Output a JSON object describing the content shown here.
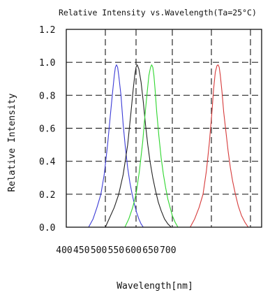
{
  "chart_data": {
    "type": "line",
    "title": "Relative Intensity vs.Wavelength(Ta=25°C)",
    "xlabel": "Wavelength[nm]",
    "ylabel": "Relative Intensity",
    "xlim": [
      400,
      750
    ],
    "ylim": [
      0,
      1.2
    ],
    "x_ticks": [
      400,
      450,
      500,
      550,
      600,
      650,
      700
    ],
    "x_tick_labels": [
      "400",
      "450",
      "500",
      "550",
      "600",
      "650",
      "700"
    ],
    "y_ticks": [
      0.0,
      0.2,
      0.4,
      0.6,
      0.8,
      1.0,
      1.2
    ],
    "y_tick_labels": [
      "0.0",
      "0.2",
      "0.4",
      "0.6",
      "0.8",
      "1.0",
      "1.2"
    ],
    "grid": true,
    "grid_x": [
      470,
      525,
      590,
      660,
      730
    ],
    "grid_y": [
      0.2,
      0.4,
      0.6,
      0.8,
      1.0
    ],
    "series": [
      {
        "color": "#3b3bd6",
        "x": [
          440,
          448,
          455,
          462,
          468,
          474,
          479,
          483,
          486,
          488,
          490,
          492,
          494,
          498,
          502,
          506,
          510,
          514,
          518,
          522,
          526,
          530,
          534,
          538
        ],
        "y": [
          0.0,
          0.05,
          0.12,
          0.2,
          0.32,
          0.5,
          0.68,
          0.82,
          0.92,
          0.97,
          0.985,
          0.97,
          0.92,
          0.8,
          0.62,
          0.48,
          0.36,
          0.27,
          0.2,
          0.14,
          0.09,
          0.05,
          0.02,
          0.0
        ]
      },
      {
        "color": "#222222",
        "x": [
          470,
          478,
          486,
          494,
          502,
          510,
          516,
          520,
          523,
          525,
          527,
          530,
          534,
          538,
          542,
          546,
          550,
          555,
          560,
          565,
          570,
          576,
          582,
          588
        ],
        "y": [
          0.0,
          0.06,
          0.12,
          0.2,
          0.32,
          0.5,
          0.7,
          0.84,
          0.93,
          0.97,
          0.985,
          0.96,
          0.88,
          0.76,
          0.62,
          0.5,
          0.4,
          0.3,
          0.22,
          0.15,
          0.1,
          0.05,
          0.02,
          0.0
        ]
      },
      {
        "color": "#2ed62e",
        "x": [
          505,
          512,
          519,
          525,
          531,
          537,
          541,
          545,
          548,
          551,
          553,
          555,
          557,
          559,
          562,
          566,
          570,
          574,
          578,
          582,
          586,
          590,
          595,
          600
        ],
        "y": [
          0.0,
          0.05,
          0.12,
          0.2,
          0.34,
          0.52,
          0.68,
          0.82,
          0.92,
          0.97,
          0.985,
          0.97,
          0.92,
          0.84,
          0.7,
          0.55,
          0.42,
          0.32,
          0.24,
          0.17,
          0.12,
          0.07,
          0.03,
          0.0
        ]
      },
      {
        "color": "#d63a3a",
        "x": [
          622,
          630,
          638,
          645,
          651,
          656,
          661,
          664,
          667,
          670,
          672,
          674,
          676,
          679,
          682,
          686,
          690,
          694,
          698,
          703,
          708,
          714,
          720,
          726
        ],
        "y": [
          0.0,
          0.05,
          0.12,
          0.2,
          0.34,
          0.5,
          0.7,
          0.84,
          0.94,
          0.98,
          0.985,
          0.97,
          0.92,
          0.82,
          0.7,
          0.58,
          0.46,
          0.36,
          0.28,
          0.2,
          0.13,
          0.07,
          0.03,
          0.0
        ]
      }
    ]
  }
}
